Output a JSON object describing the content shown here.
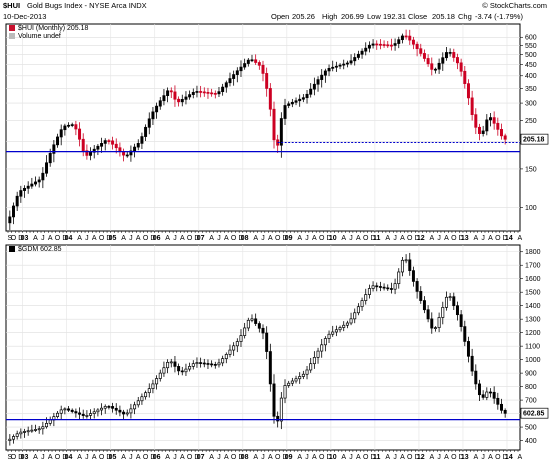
{
  "header": {
    "symbol": "$HUI",
    "name": "Gold Bugs Index - NYSE Arca INDX",
    "date": "10-Dec-2013",
    "open_label": "Open",
    "open": "205.26",
    "high_label": "High",
    "high": "206.99",
    "low_label": "Low",
    "low": "192.31",
    "close_label": "Close",
    "close": "205.18",
    "chg_label": "Chg",
    "chg": "-3.74 (-1.79%)",
    "credit": "© StockCharts.com"
  },
  "colors": {
    "up": "#000000",
    "down": "#cc0022",
    "support": "#0000cc",
    "frame": "#000000"
  },
  "chart_data": [
    {
      "type": "candlestick",
      "legend": [
        "$HUI (Monthly) 205.18",
        "Volume undef"
      ],
      "yscale": "log",
      "ylim": [
        78,
        690
      ],
      "yticks": [
        100,
        150,
        200,
        250,
        300,
        350,
        400,
        450,
        500,
        550,
        600
      ],
      "last_value_label": "205.18",
      "last_value": 205.18,
      "support_level": 180,
      "dotted_level": 198,
      "dotted_from": "2008-10",
      "series_step": 0.5,
      "anchors": [
        [
          "2002-09",
          85
        ],
        [
          "2002-12",
          118
        ],
        [
          "2003-06",
          135
        ],
        [
          "2003-12",
          235
        ],
        [
          "2004-03",
          240
        ],
        [
          "2004-06",
          170
        ],
        [
          "2004-12",
          205
        ],
        [
          "2005-05",
          170
        ],
        [
          "2005-09",
          200
        ],
        [
          "2005-12",
          265
        ],
        [
          "2006-05",
          350
        ],
        [
          "2006-07",
          300
        ],
        [
          "2006-12",
          340
        ],
        [
          "2007-06",
          330
        ],
        [
          "2007-12",
          430
        ],
        [
          "2008-03",
          480
        ],
        [
          "2008-06",
          440
        ],
        [
          "2008-08",
          320
        ],
        [
          "2008-10",
          165
        ],
        [
          "2008-11",
          220
        ],
        [
          "2008-12",
          290
        ],
        [
          "2009-06",
          320
        ],
        [
          "2009-12",
          430
        ],
        [
          "2010-06",
          460
        ],
        [
          "2010-12",
          560
        ],
        [
          "2011-06",
          550
        ],
        [
          "2011-09",
          620
        ],
        [
          "2011-12",
          545
        ],
        [
          "2012-05",
          415
        ],
        [
          "2012-09",
          525
        ],
        [
          "2012-12",
          445
        ],
        [
          "2013-04",
          240
        ],
        [
          "2013-06",
          210
        ],
        [
          "2013-08",
          265
        ],
        [
          "2013-12",
          205
        ]
      ]
    },
    {
      "type": "candlestick",
      "legend": [
        "$GDM 602.85"
      ],
      "yscale": "linear",
      "ylim": [
        330,
        1850
      ],
      "yticks": [
        400,
        500,
        600,
        700,
        800,
        900,
        1000,
        1100,
        1200,
        1300,
        1400,
        1500,
        1600,
        1700,
        1800
      ],
      "last_value_label": "602.85",
      "last_value": 602.85,
      "support_level": 555,
      "series_step": 0.4,
      "anchors": [
        [
          "2002-09",
          400
        ],
        [
          "2002-12",
          460
        ],
        [
          "2003-06",
          490
        ],
        [
          "2003-12",
          640
        ],
        [
          "2004-06",
          580
        ],
        [
          "2004-12",
          660
        ],
        [
          "2005-05",
          590
        ],
        [
          "2005-12",
          800
        ],
        [
          "2006-05",
          1000
        ],
        [
          "2006-08",
          900
        ],
        [
          "2006-12",
          980
        ],
        [
          "2007-06",
          960
        ],
        [
          "2007-12",
          1150
        ],
        [
          "2008-03",
          1320
        ],
        [
          "2008-07",
          1180
        ],
        [
          "2008-10",
          460
        ],
        [
          "2008-12",
          800
        ],
        [
          "2009-06",
          900
        ],
        [
          "2009-12",
          1180
        ],
        [
          "2010-06",
          1280
        ],
        [
          "2010-12",
          1550
        ],
        [
          "2011-06",
          1520
        ],
        [
          "2011-09",
          1780
        ],
        [
          "2011-12",
          1540
        ],
        [
          "2012-05",
          1200
        ],
        [
          "2012-09",
          1500
        ],
        [
          "2012-12",
          1300
        ],
        [
          "2013-04",
          860
        ],
        [
          "2013-06",
          700
        ],
        [
          "2013-08",
          780
        ],
        [
          "2013-12",
          602
        ]
      ]
    }
  ],
  "x_axis": {
    "start": "2002-09",
    "end": "2014-04",
    "months": [
      "J",
      "F",
      "M",
      "A",
      "M",
      "J",
      "J",
      "A",
      "S",
      "O",
      "N",
      "D"
    ],
    "year_labels": [
      "03",
      "04",
      "05",
      "06",
      "07",
      "08",
      "09",
      "10",
      "11",
      "12",
      "13",
      "14"
    ]
  }
}
